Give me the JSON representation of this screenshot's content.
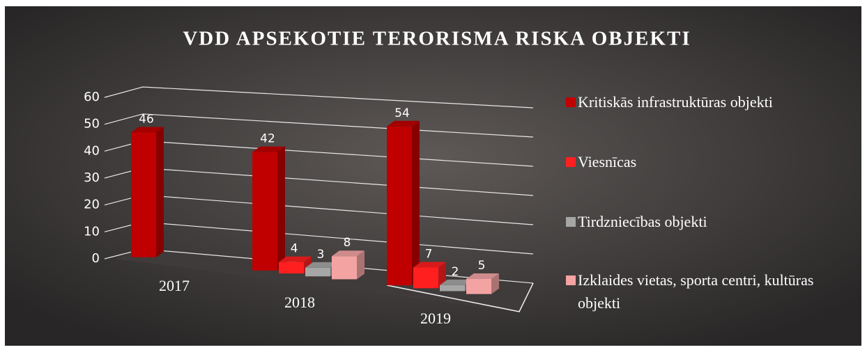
{
  "chart_data": {
    "type": "bar3d",
    "title": "VDD APSEKOTIE TERORISMA RISKA OBJEKTI",
    "categories": [
      "2017",
      "2018",
      "2019"
    ],
    "series": [
      {
        "name": "Kritiskās infrastruktūras objekti",
        "color": "#c00000",
        "values": [
          46,
          42,
          54
        ]
      },
      {
        "name": "Viesnīcas",
        "color": "#ff1f1f",
        "values": [
          null,
          4,
          7
        ]
      },
      {
        "name": "Tirdzniecības objekti",
        "color": "#a6a6a6",
        "values": [
          null,
          3,
          2
        ]
      },
      {
        "name": "Izklaides vietas, sporta centri, kultūras objekti",
        "color": "#f4a3a3",
        "values": [
          null,
          8,
          5
        ]
      }
    ],
    "ylim": [
      0,
      60
    ],
    "yticks": [
      0,
      10,
      20,
      30,
      40,
      50,
      60
    ],
    "grid": true,
    "legend": "right"
  }
}
